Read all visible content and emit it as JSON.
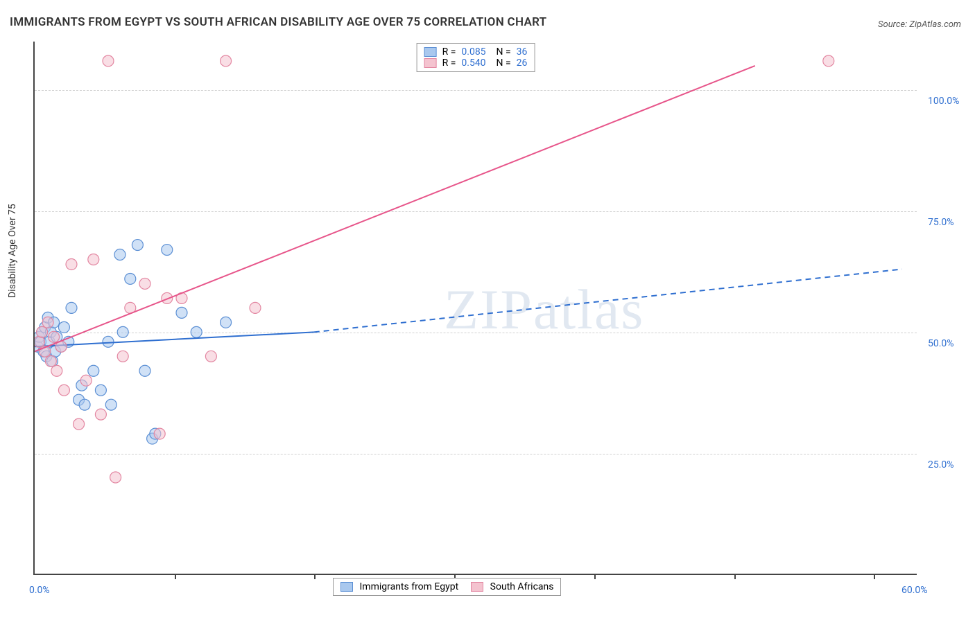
{
  "title": "IMMIGRANTS FROM EGYPT VS SOUTH AFRICAN DISABILITY AGE OVER 75 CORRELATION CHART",
  "source_label": "Source: ZipAtlas.com",
  "y_axis_label": "Disability Age Over 75",
  "watermark": "ZIPatlas",
  "chart": {
    "type": "scatter-with-regression",
    "background_color": "#ffffff",
    "grid_color": "#d0d0d0",
    "axis_color": "#444444",
    "text_color": "#333333",
    "accent_color": "#2f6fd0",
    "xlim": [
      0,
      60
    ],
    "ylim": [
      0,
      110
    ],
    "x_ticks": [
      0,
      60
    ],
    "x_tick_labels": [
      "0.0%",
      "60.0%"
    ],
    "x_minor_tick_positions": [
      9.5,
      19,
      28.5,
      38,
      47.5,
      57
    ],
    "y_ticks": [
      25,
      50,
      75,
      100
    ],
    "y_tick_labels": [
      "25.0%",
      "50.0%",
      "75.0%",
      "100.0%"
    ],
    "marker_radius": 8,
    "marker_stroke_width": 1.2,
    "line_width": 2,
    "series": [
      {
        "name": "Immigrants from Egypt",
        "color_fill": "#a9c8ee",
        "color_stroke": "#5b8fd4",
        "line_color": "#2f6fd0",
        "R": "0.085",
        "N": "36",
        "regression": {
          "x1": 0,
          "y1": 47,
          "x2_solid": 19,
          "y2_solid": 50,
          "x2_dash": 59,
          "y2_dash": 63
        },
        "points": [
          [
            0.2,
            47
          ],
          [
            0.3,
            49
          ],
          [
            0.4,
            48
          ],
          [
            0.5,
            50
          ],
          [
            0.6,
            46
          ],
          [
            0.7,
            51
          ],
          [
            0.8,
            45
          ],
          [
            0.9,
            53
          ],
          [
            1.0,
            48
          ],
          [
            1.1,
            50
          ],
          [
            1.2,
            44
          ],
          [
            1.3,
            52
          ],
          [
            1.4,
            46
          ],
          [
            1.5,
            49
          ],
          [
            1.8,
            47
          ],
          [
            2.0,
            51
          ],
          [
            2.3,
            48
          ],
          [
            2.5,
            55
          ],
          [
            3.0,
            36
          ],
          [
            3.2,
            39
          ],
          [
            3.4,
            35
          ],
          [
            4.0,
            42
          ],
          [
            4.5,
            38
          ],
          [
            5.0,
            48
          ],
          [
            5.2,
            35
          ],
          [
            5.8,
            66
          ],
          [
            6.0,
            50
          ],
          [
            6.5,
            61
          ],
          [
            7.0,
            68
          ],
          [
            7.5,
            42
          ],
          [
            8.0,
            28
          ],
          [
            8.2,
            29
          ],
          [
            9.0,
            67
          ],
          [
            10.0,
            54
          ],
          [
            11.0,
            50
          ],
          [
            13.0,
            52
          ]
        ]
      },
      {
        "name": "South Africans",
        "color_fill": "#f4c3cf",
        "color_stroke": "#e386a1",
        "line_color": "#e7558a",
        "R": "0.540",
        "N": "26",
        "regression": {
          "x1": 0,
          "y1": 46,
          "x2_solid": 49,
          "y2_solid": 105,
          "x2_dash": 49,
          "y2_dash": 105
        },
        "points": [
          [
            0.3,
            48
          ],
          [
            0.5,
            50
          ],
          [
            0.7,
            46
          ],
          [
            0.9,
            52
          ],
          [
            1.1,
            44
          ],
          [
            1.3,
            49
          ],
          [
            1.5,
            42
          ],
          [
            1.8,
            47
          ],
          [
            2.0,
            38
          ],
          [
            2.5,
            64
          ],
          [
            3.0,
            31
          ],
          [
            3.5,
            40
          ],
          [
            4.0,
            65
          ],
          [
            4.5,
            33
          ],
          [
            5.0,
            106
          ],
          [
            5.5,
            20
          ],
          [
            6.0,
            45
          ],
          [
            6.5,
            55
          ],
          [
            7.5,
            60
          ],
          [
            8.5,
            29
          ],
          [
            9.0,
            57
          ],
          [
            10.0,
            57
          ],
          [
            12.0,
            45
          ],
          [
            13.0,
            106
          ],
          [
            15.0,
            55
          ],
          [
            54.0,
            106
          ]
        ]
      }
    ]
  },
  "legend_bottom": {
    "items": [
      {
        "label": "Immigrants from Egypt",
        "fill": "#a9c8ee",
        "stroke": "#5b8fd4"
      },
      {
        "label": "South Africans",
        "fill": "#f4c3cf",
        "stroke": "#e386a1"
      }
    ]
  }
}
